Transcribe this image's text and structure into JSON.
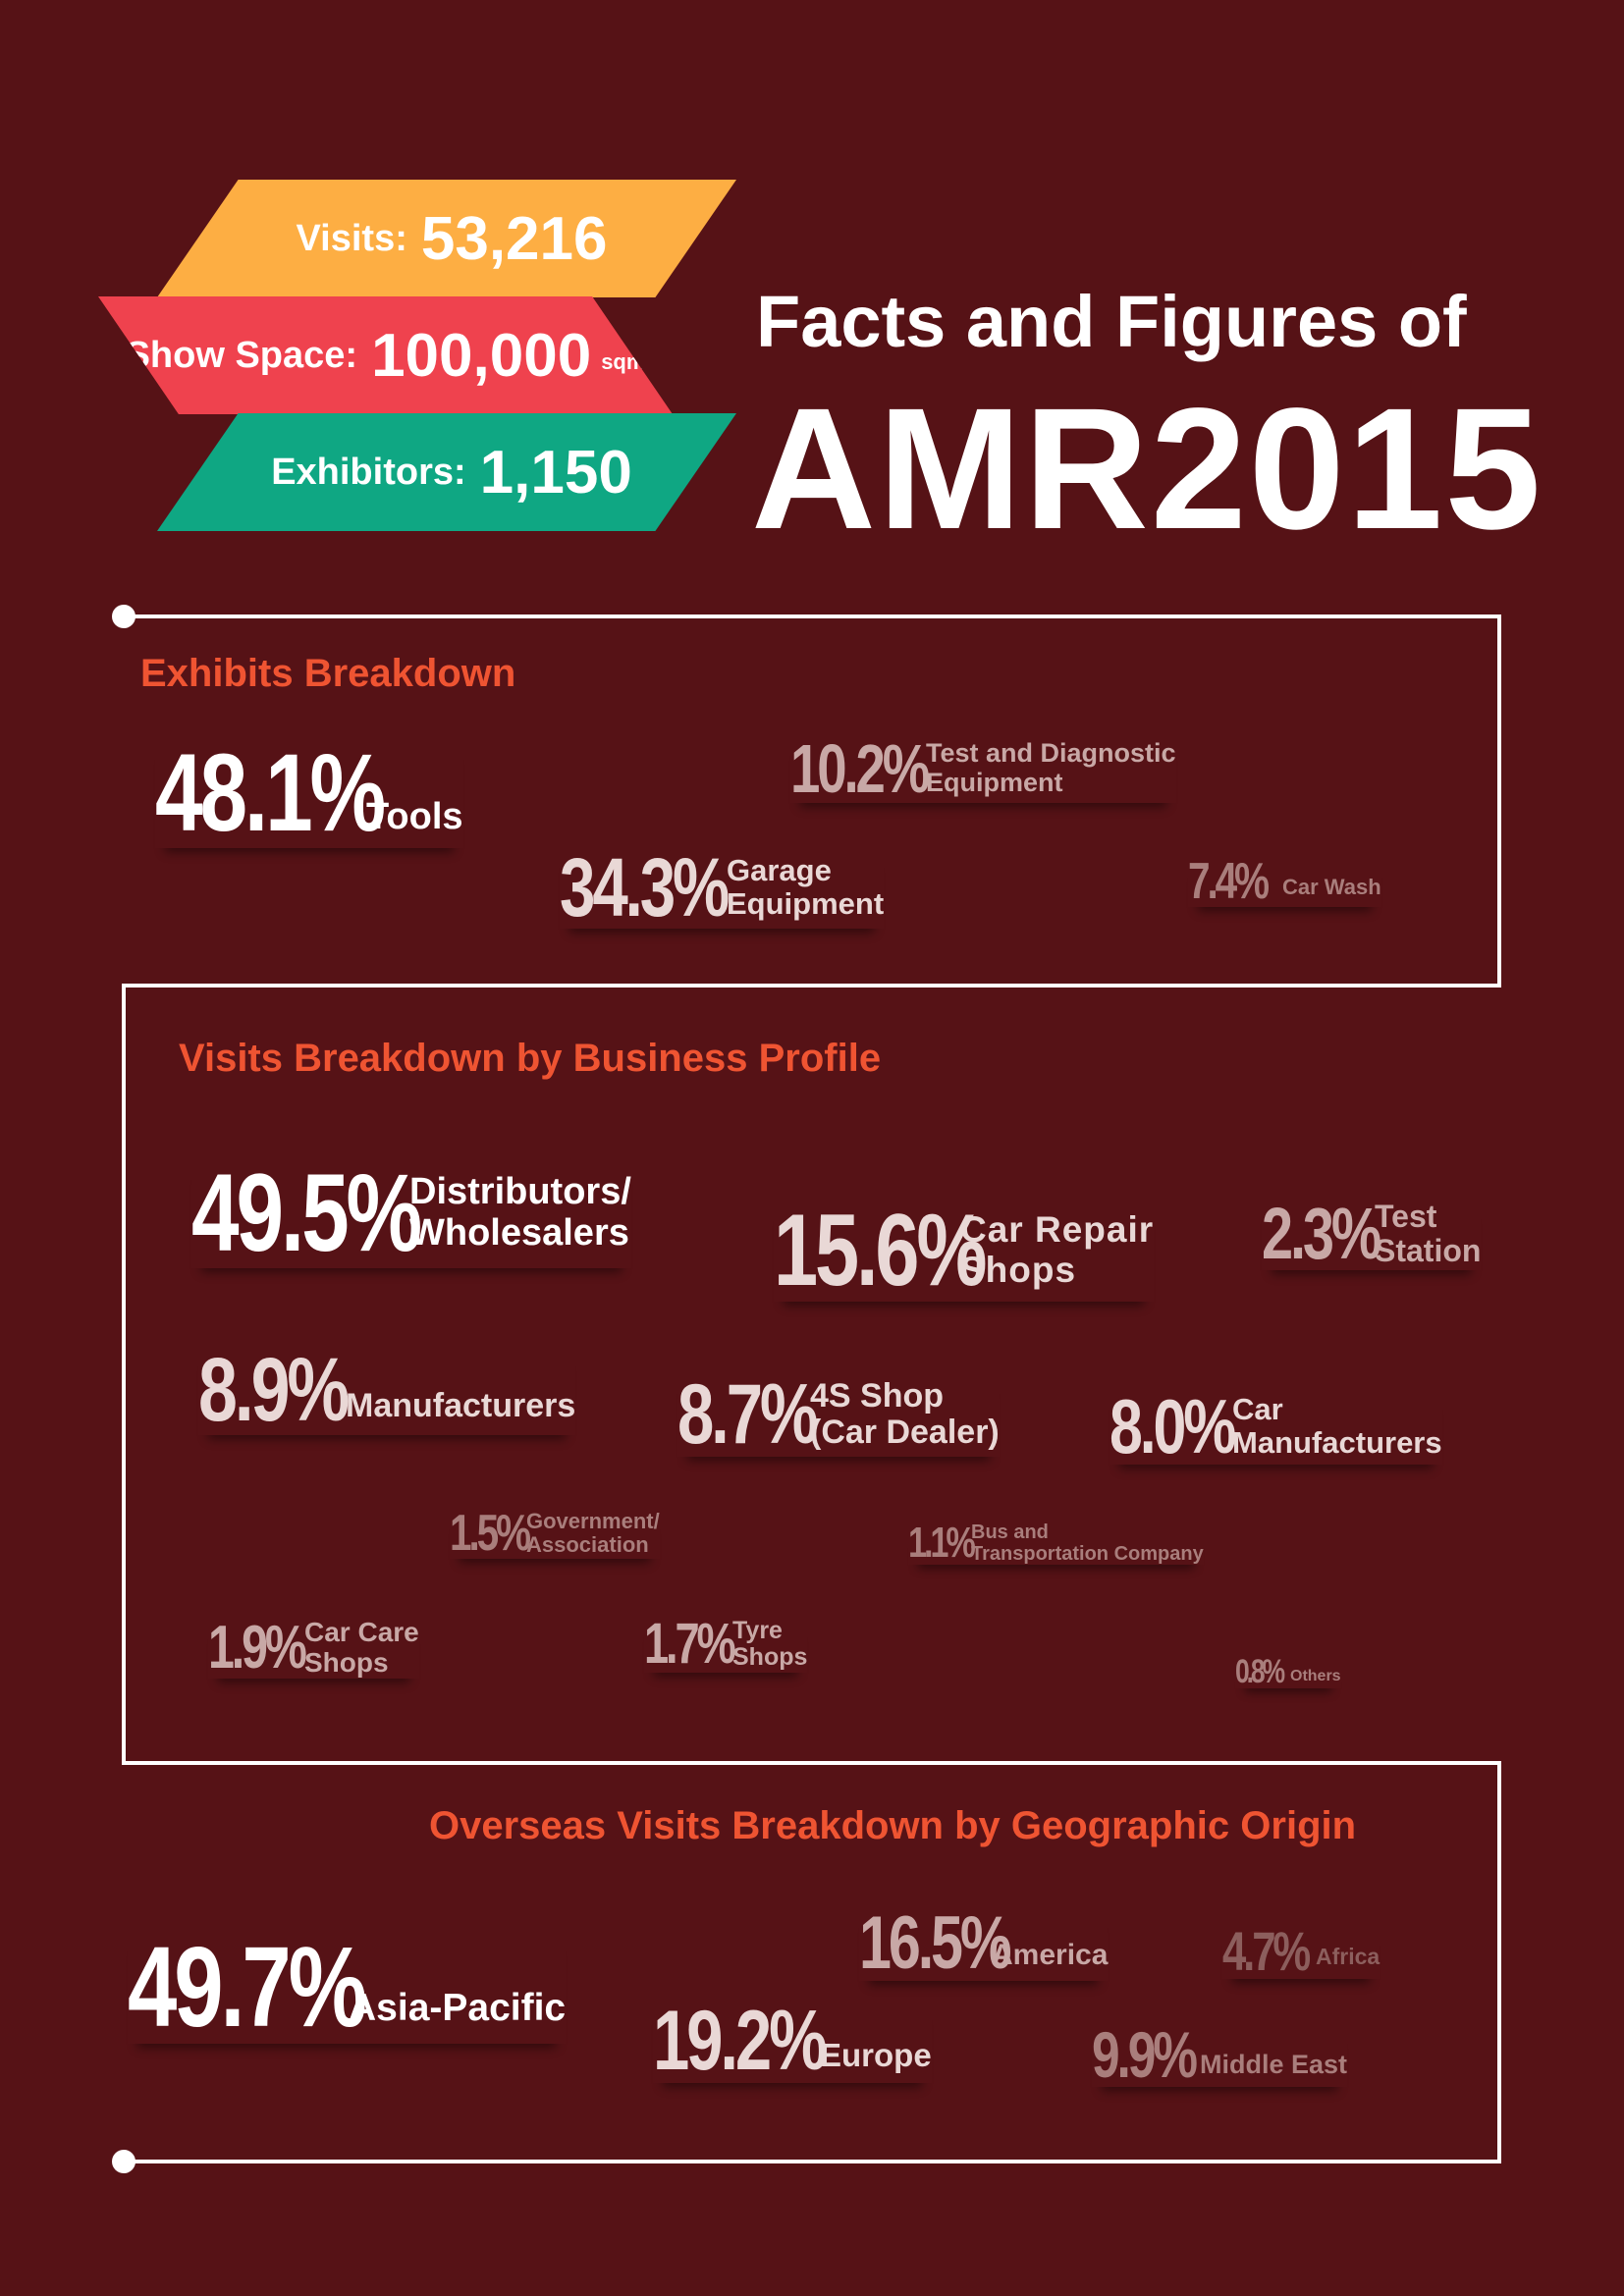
{
  "header": {
    "visits": {
      "label": "Visits:",
      "value": "53,216"
    },
    "show_space": {
      "label": "Show Space:",
      "value": "100,000",
      "unit": "sqm"
    },
    "exhibitors": {
      "label": "Exhibitors:",
      "value": "1,150"
    },
    "title_line1": "Facts and Figures of",
    "title_line2": "AMR2015"
  },
  "colors": {
    "background": "#561216",
    "visits_ribbon": "#fdae43",
    "space_ribbon": "#ef424e",
    "exhibitors_ribbon": "#0fa783",
    "section_title": "#ef5432"
  },
  "exhibits": {
    "title": "Exhibits Breakdown",
    "items": [
      {
        "pct": "48.1%",
        "label": "Tools"
      },
      {
        "pct": "34.3%",
        "label": "Garage\nEquipment"
      },
      {
        "pct": "10.2%",
        "label": "Test and Diagnostic\nEquipment"
      },
      {
        "pct": "7.4%",
        "label": "Car Wash"
      }
    ]
  },
  "business": {
    "title": "Visits Breakdown by Business Profile",
    "items": [
      {
        "pct": "49.5%",
        "label": "Distributors/\nWholesalers"
      },
      {
        "pct": "15.6%",
        "label": "Car Repair\nShops"
      },
      {
        "pct": "2.3%",
        "label": "Test\nStation"
      },
      {
        "pct": "8.9%",
        "label": "Manufacturers"
      },
      {
        "pct": "8.7%",
        "label": "4S Shop\n(Car Dealer)"
      },
      {
        "pct": "8.0%",
        "label": "Car\nManufacturers"
      },
      {
        "pct": "1.5%",
        "label": "Government/\nAssociation"
      },
      {
        "pct": "1.1%",
        "label": "Bus and\nTransportation Company"
      },
      {
        "pct": "1.9%",
        "label": "Car Care\nShops"
      },
      {
        "pct": "1.7%",
        "label": "Tyre\nShops"
      },
      {
        "pct": "0.8%",
        "label": "Others"
      }
    ]
  },
  "overseas": {
    "title": "Overseas Visits Breakdown by Geographic Origin",
    "items": [
      {
        "pct": "49.7%",
        "label": "Asia-Pacific"
      },
      {
        "pct": "16.5%",
        "label": "America"
      },
      {
        "pct": "4.7%",
        "label": "Africa"
      },
      {
        "pct": "19.2%",
        "label": "Europe"
      },
      {
        "pct": "9.9%",
        "label": "Middle East"
      }
    ]
  }
}
